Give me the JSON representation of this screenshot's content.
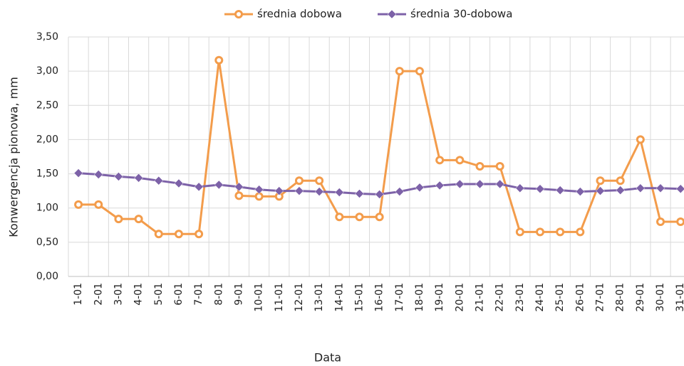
{
  "chart_data": {
    "type": "line",
    "y_label": "Konwergencja pionowa, mm",
    "x_label": "Data",
    "categories": [
      "1-01",
      "2-01",
      "3-01",
      "4-01",
      "5-01",
      "6-01",
      "7-01",
      "8-01",
      "9-01",
      "10-01",
      "11-01",
      "12-01",
      "13-01",
      "14-01",
      "15-01",
      "16-01",
      "17-01",
      "18-01",
      "19-01",
      "20-01",
      "21-01",
      "22-01",
      "23-01",
      "24-01",
      "25-01",
      "26-01",
      "27-01",
      "28-01",
      "29-01",
      "30-01",
      "31-01"
    ],
    "series": [
      {
        "name": "średnia dobowa",
        "color": "#f39c4b",
        "marker": "circle",
        "values": [
          1.05,
          1.05,
          0.84,
          0.84,
          0.62,
          0.62,
          0.62,
          3.16,
          1.18,
          1.17,
          1.17,
          1.4,
          1.4,
          0.87,
          0.87,
          0.87,
          3.0,
          3.0,
          1.7,
          1.7,
          1.61,
          1.61,
          0.65,
          0.65,
          0.65,
          0.65,
          1.4,
          1.4,
          2.0,
          0.8,
          0.8
        ]
      },
      {
        "name": "średnia 30-dobowa",
        "color": "#7d62a8",
        "marker": "diamond",
        "values": [
          1.51,
          1.49,
          1.46,
          1.44,
          1.4,
          1.36,
          1.31,
          1.34,
          1.31,
          1.27,
          1.25,
          1.25,
          1.24,
          1.23,
          1.21,
          1.2,
          1.24,
          1.3,
          1.33,
          1.35,
          1.35,
          1.35,
          1.29,
          1.28,
          1.26,
          1.24,
          1.25,
          1.26,
          1.29,
          1.29,
          1.28
        ]
      }
    ],
    "ylim": [
      0,
      3.5
    ],
    "yticks": [
      {
        "value": 0,
        "label": "0,00"
      },
      {
        "value": 0.5,
        "label": "0,50"
      },
      {
        "value": 1,
        "label": "1,00"
      },
      {
        "value": 1.5,
        "label": "1,50"
      },
      {
        "value": 2,
        "label": "2,00"
      },
      {
        "value": 2.5,
        "label": "2,50"
      },
      {
        "value": 3,
        "label": "3,00"
      },
      {
        "value": 3.5,
        "label": "3,50"
      }
    ],
    "grid": true,
    "legend": "top"
  }
}
